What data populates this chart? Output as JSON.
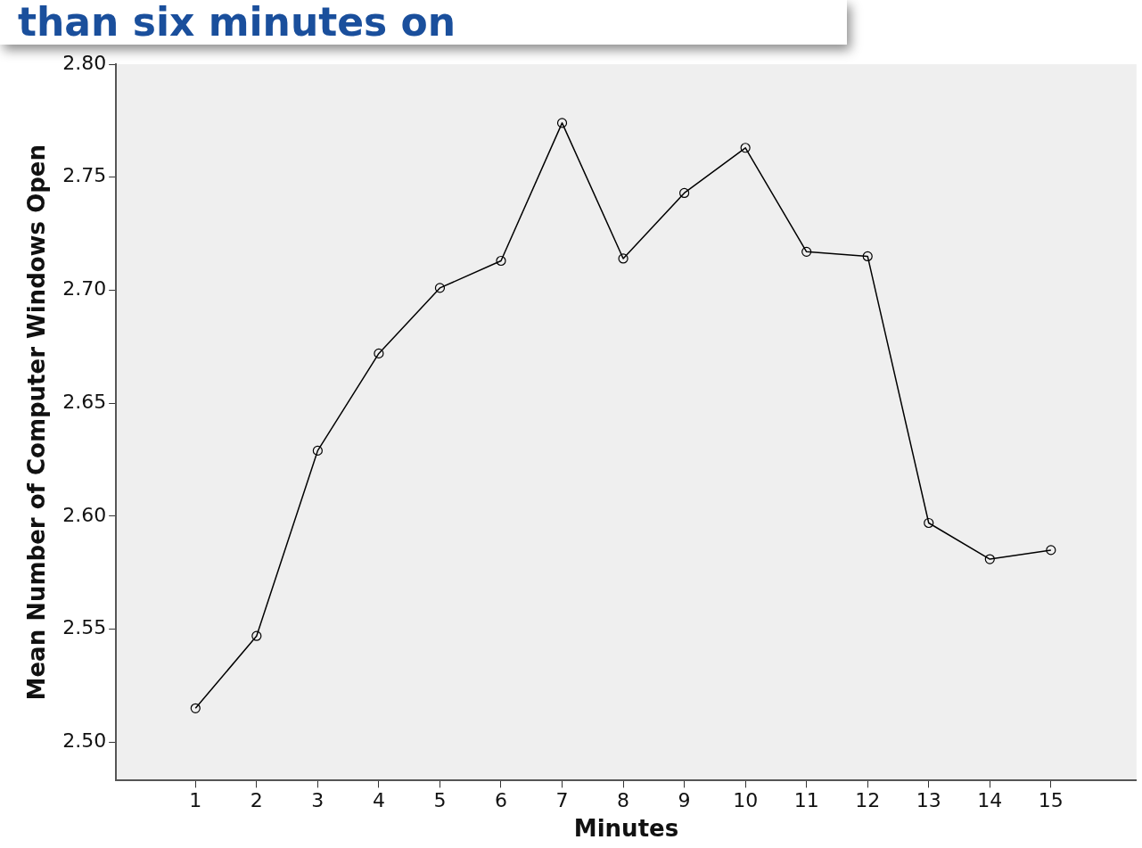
{
  "chart_data": {
    "type": "line",
    "xlabel": "Minutes",
    "ylabel": "Mean Number of Computer Windows Open",
    "annotations": [
      "than six minutes on"
    ],
    "x": [
      1,
      2,
      3,
      4,
      5,
      6,
      7,
      8,
      9,
      10,
      11,
      12,
      13,
      14,
      15
    ],
    "series": [
      {
        "color": "#000000",
        "values": [
          2.515,
          2.547,
          2.629,
          2.672,
          2.701,
          2.713,
          2.774,
          2.714,
          2.743,
          2.763,
          2.717,
          2.715,
          2.597,
          2.581,
          2.585
        ]
      }
    ],
    "xlim": [
      -0.3,
      16.4
    ],
    "xticks": [
      1,
      2,
      3,
      4,
      5,
      6,
      7,
      8,
      9,
      10,
      11,
      12,
      13,
      14,
      15
    ],
    "ylim": [
      2.483,
      2.8
    ],
    "yticks": [
      {
        "value": 2.5,
        "label": "2.50"
      },
      2.55,
      {
        "value": 2.6,
        "label": "2.60"
      },
      2.65,
      {
        "value": 2.7,
        "label": "2.70"
      },
      2.75,
      {
        "value": 2.8,
        "label": "2.80"
      }
    ],
    "grid": false,
    "legend": false,
    "marker": "circle",
    "line_style": "solid"
  }
}
